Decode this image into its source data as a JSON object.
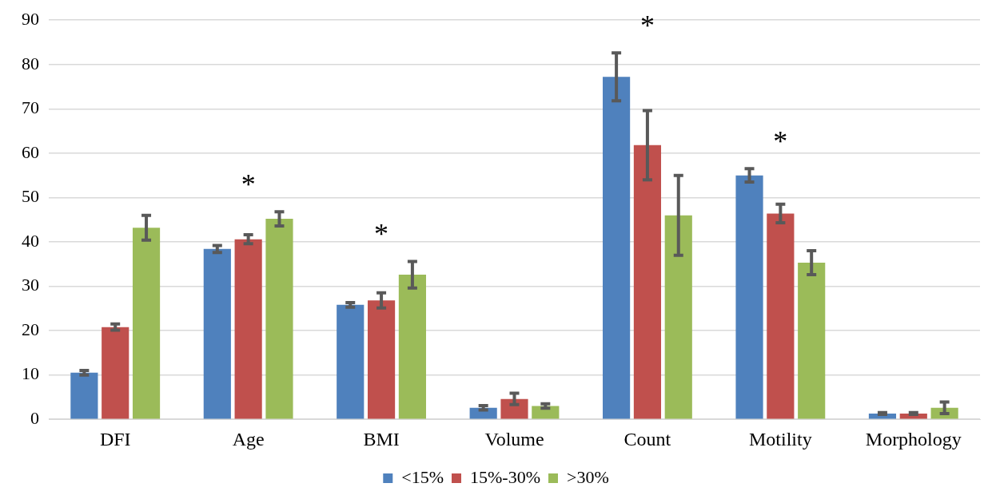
{
  "chart_data": {
    "type": "bar",
    "categories": [
      "DFI",
      "Age",
      "BMI",
      "Volume",
      "Count",
      "Motility",
      "Morphology"
    ],
    "series": [
      {
        "name": "<15%",
        "color": "#4f81bd",
        "values": [
          10.5,
          38.4,
          25.8,
          2.6,
          77.2,
          55.0,
          1.3
        ],
        "errors": [
          0.5,
          0.8,
          0.5,
          0.5,
          5.4,
          1.5,
          0.2
        ]
      },
      {
        "name": "15%-30%",
        "color": "#c0504d",
        "values": [
          20.8,
          40.6,
          26.8,
          4.6,
          61.8,
          46.4,
          1.3
        ],
        "errors": [
          0.7,
          1.0,
          1.7,
          1.3,
          7.8,
          2.1,
          0.2
        ]
      },
      {
        "name": ">30%",
        "color": "#9bbb59",
        "values": [
          43.2,
          45.2,
          32.6,
          3.0,
          46.0,
          35.3,
          2.6
        ],
        "errors": [
          2.8,
          1.6,
          3.0,
          0.5,
          9.0,
          2.7,
          1.3
        ]
      }
    ],
    "ylim": [
      0,
      90
    ],
    "yticks": [
      0,
      10,
      20,
      30,
      40,
      50,
      60,
      70,
      80,
      90
    ],
    "grid": "y",
    "legend": "bottom",
    "annotations": [
      "*",
      "*",
      "*",
      "*"
    ]
  }
}
